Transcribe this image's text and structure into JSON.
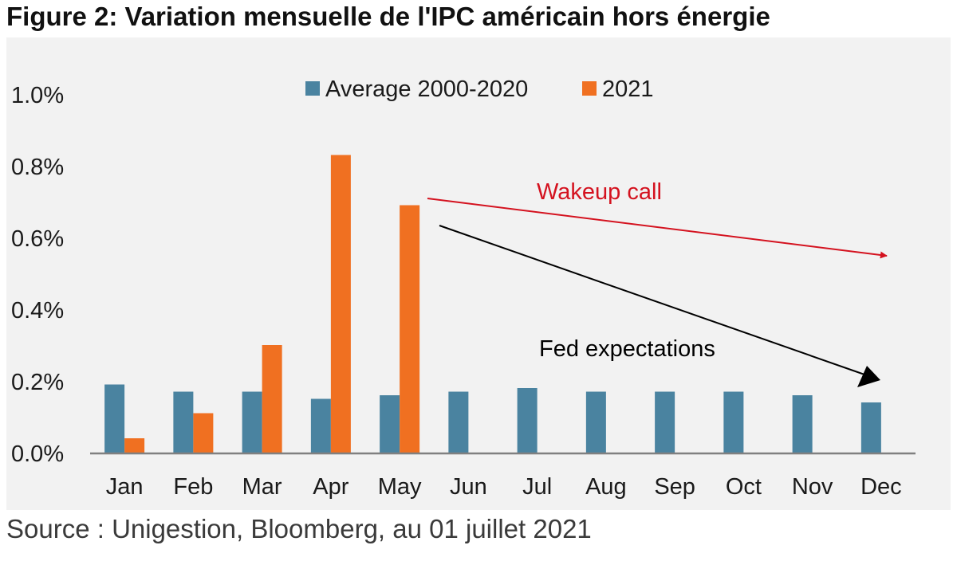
{
  "title": "Figure 2: Variation mensuelle de l'IPC américain hors énergie",
  "source": "Source : Unigestion, Bloomberg, au 01 juillet 2021",
  "colors": {
    "average": "#4a83a0",
    "y2021": "#f07021",
    "wakeup": "#d4121f",
    "fed": "#000000",
    "background": "#f2f2f2",
    "axis": "#808080"
  },
  "chart_data": {
    "type": "bar",
    "title": "",
    "xlabel": "",
    "ylabel": "",
    "categories": [
      "Jan",
      "Feb",
      "Mar",
      "Apr",
      "May",
      "Jun",
      "Jul",
      "Aug",
      "Sep",
      "Oct",
      "Nov",
      "Dec"
    ],
    "series": [
      {
        "name": "Average 2000-2020",
        "values": [
          0.19,
          0.17,
          0.17,
          0.15,
          0.16,
          0.17,
          0.18,
          0.17,
          0.17,
          0.17,
          0.16,
          0.14
        ]
      },
      {
        "name": "2021",
        "values": [
          0.04,
          0.11,
          0.3,
          0.83,
          0.69,
          null,
          null,
          null,
          null,
          null,
          null,
          null
        ]
      }
    ],
    "ylim": [
      0,
      1.0
    ],
    "yticks": [
      0.0,
      0.2,
      0.4,
      0.6,
      0.8,
      1.0
    ],
    "ytick_labels": [
      "0.0%",
      "0.2%",
      "0.4%",
      "0.6%",
      "0.8%",
      "1.0%"
    ],
    "grid": false,
    "legend_position": "top-center",
    "annotations": [
      {
        "text": "Wakeup call",
        "color": "#d4121f"
      },
      {
        "text": "Fed expectations",
        "color": "#000000"
      }
    ]
  }
}
